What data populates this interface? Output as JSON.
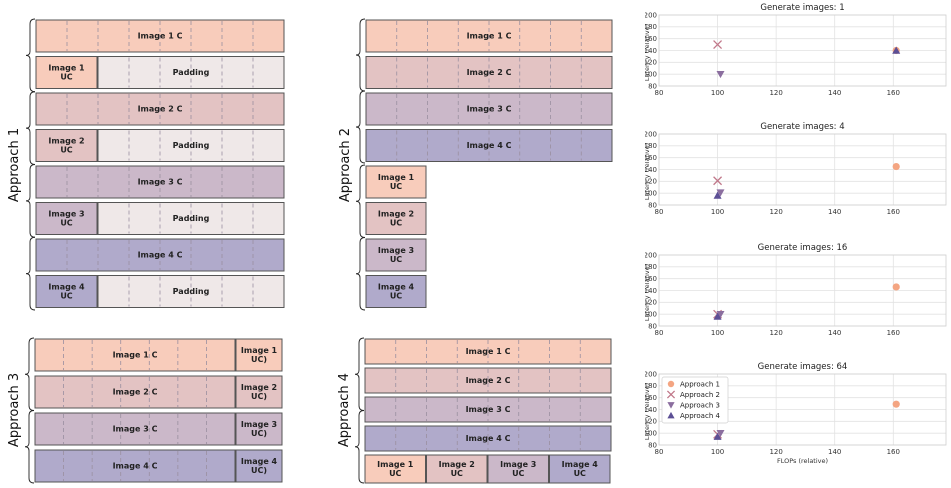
{
  "colors": {
    "c1": "#f8ccbb",
    "c2": "#e3c3c3",
    "c3": "#cbb8c9",
    "c4": "#b0aacb",
    "pad": "#efe8e8",
    "edge": "#555555",
    "approach1": "#f4a582",
    "approach2": "#c1788a",
    "approach3": "#8b6e9f",
    "approach4": "#5c4f95"
  },
  "diagram": {
    "approaches": [
      {
        "label": "Approach 1",
        "blocks": [
          {
            "label": "Image 1 C",
            "color": "c1"
          },
          {
            "label": "Image 1\nUC",
            "color": "c1"
          },
          {
            "label": "Padding",
            "color": "pad"
          },
          {
            "label": "Image 2 C",
            "color": "c2"
          },
          {
            "label": "Image 2\nUC",
            "color": "c2"
          },
          {
            "label": "Padding",
            "color": "pad"
          },
          {
            "label": "Image 3 C",
            "color": "c3"
          },
          {
            "label": "Image 3\nUC",
            "color": "c3"
          },
          {
            "label": "Padding",
            "color": "pad"
          },
          {
            "label": "Image 4 C",
            "color": "c4"
          },
          {
            "label": "Image 4\nUC",
            "color": "c4"
          },
          {
            "label": "Padding",
            "color": "pad"
          }
        ]
      },
      {
        "label": "Approach 2",
        "blocks": [
          {
            "label": "Image 1 C",
            "color": "c1"
          },
          {
            "label": "Image 2 C",
            "color": "c2"
          },
          {
            "label": "Image 3 C",
            "color": "c3"
          },
          {
            "label": "Image 4 C",
            "color": "c4"
          },
          {
            "label": "Image 1\nUC",
            "color": "c1"
          },
          {
            "label": "Image 2\nUC",
            "color": "c2"
          },
          {
            "label": "Image 3\nUC",
            "color": "c3"
          },
          {
            "label": "Image 4\nUC",
            "color": "c4"
          }
        ]
      },
      {
        "label": "Approach 3",
        "blocks": [
          {
            "label": "Image 1 C",
            "color": "c1"
          },
          {
            "label": "Image 1\nUC)",
            "color": "c1"
          },
          {
            "label": "Image 2 C",
            "color": "c2"
          },
          {
            "label": "Image 2\nUC)",
            "color": "c2"
          },
          {
            "label": "Image 3 C",
            "color": "c3"
          },
          {
            "label": "Image 3\nUC)",
            "color": "c3"
          },
          {
            "label": "Image 4 C",
            "color": "c4"
          },
          {
            "label": "Image 4\nUC)",
            "color": "c4"
          }
        ]
      },
      {
        "label": "Approach 4",
        "blocks": [
          {
            "label": "Image 1 C",
            "color": "c1"
          },
          {
            "label": "Image 2 C",
            "color": "c2"
          },
          {
            "label": "Image 3 C",
            "color": "c3"
          },
          {
            "label": "Image 4 C",
            "color": "c4"
          },
          {
            "label": "Image 1\nUC",
            "color": "c1"
          },
          {
            "label": "Image 2\nUC",
            "color": "c2"
          },
          {
            "label": "Image 3\nUC",
            "color": "c3"
          },
          {
            "label": "Image 4\nUC",
            "color": "c4"
          }
        ]
      }
    ]
  },
  "chart_data": [
    {
      "type": "scatter",
      "title": "Generate images: 1",
      "xlabel": "",
      "ylabel": "Latency (relative)",
      "xlim": [
        80,
        178
      ],
      "ylim": [
        80,
        200
      ],
      "xticks": [
        80,
        100,
        120,
        140,
        160
      ],
      "yticks": [
        80,
        100,
        120,
        140,
        160,
        180,
        200
      ],
      "grid": true,
      "legend": "none",
      "series": [
        {
          "name": "Approach 1",
          "marker": "circle",
          "points": [
            [
              161,
              140
            ]
          ]
        },
        {
          "name": "Approach 2",
          "marker": "x",
          "points": [
            [
              100,
              150
            ]
          ]
        },
        {
          "name": "Approach 3",
          "marker": "triangle-down",
          "points": [
            [
              101,
              100
            ]
          ]
        },
        {
          "name": "Approach 4",
          "marker": "triangle-up",
          "points": [
            [
              161,
              140
            ]
          ]
        }
      ]
    },
    {
      "type": "scatter",
      "title": "Generate images: 4",
      "xlabel": "",
      "ylabel": "Latency (relative)",
      "xlim": [
        80,
        178
      ],
      "ylim": [
        80,
        200
      ],
      "xticks": [
        80,
        100,
        120,
        140,
        160
      ],
      "yticks": [
        80,
        100,
        120,
        140,
        160,
        180,
        200
      ],
      "grid": true,
      "legend": "none",
      "series": [
        {
          "name": "Approach 1",
          "marker": "circle",
          "points": [
            [
              161,
              145
            ]
          ]
        },
        {
          "name": "Approach 2",
          "marker": "x",
          "points": [
            [
              100,
              121
            ]
          ]
        },
        {
          "name": "Approach 3",
          "marker": "triangle-down",
          "points": [
            [
              101,
              101
            ]
          ]
        },
        {
          "name": "Approach 4",
          "marker": "triangle-up",
          "points": [
            [
              100,
              96
            ]
          ]
        }
      ]
    },
    {
      "type": "scatter",
      "title": "Generate images: 16",
      "xlabel": "",
      "ylabel": "Latency (relative)",
      "xlim": [
        80,
        178
      ],
      "ylim": [
        80,
        200
      ],
      "xticks": [
        80,
        100,
        120,
        140,
        160
      ],
      "yticks": [
        80,
        100,
        120,
        140,
        160,
        180,
        200
      ],
      "grid": true,
      "legend": "none",
      "series": [
        {
          "name": "Approach 1",
          "marker": "circle",
          "points": [
            [
              161,
              146
            ]
          ]
        },
        {
          "name": "Approach 2",
          "marker": "x",
          "points": [
            [
              100,
              100
            ]
          ]
        },
        {
          "name": "Approach 3",
          "marker": "triangle-down",
          "points": [
            [
              101,
              100
            ]
          ]
        },
        {
          "name": "Approach 4",
          "marker": "triangle-up",
          "points": [
            [
              100,
              96
            ]
          ]
        }
      ]
    },
    {
      "type": "scatter",
      "title": "Generate images: 64",
      "xlabel": "FLOPs (relative)",
      "ylabel": "Latency (relative)",
      "xlim": [
        80,
        178
      ],
      "ylim": [
        80,
        200
      ],
      "xticks": [
        80,
        100,
        120,
        140,
        160
      ],
      "yticks": [
        80,
        100,
        120,
        140,
        160,
        180,
        200
      ],
      "grid": true,
      "legend": "top-left",
      "series": [
        {
          "name": "Approach 1",
          "marker": "circle",
          "points": [
            [
              161,
              149
            ]
          ]
        },
        {
          "name": "Approach 2",
          "marker": "x",
          "points": [
            [
              100,
              98
            ]
          ]
        },
        {
          "name": "Approach 3",
          "marker": "triangle-down",
          "points": [
            [
              101,
              100
            ]
          ]
        },
        {
          "name": "Approach 4",
          "marker": "triangle-up",
          "points": [
            [
              100,
              94
            ]
          ]
        }
      ]
    }
  ]
}
